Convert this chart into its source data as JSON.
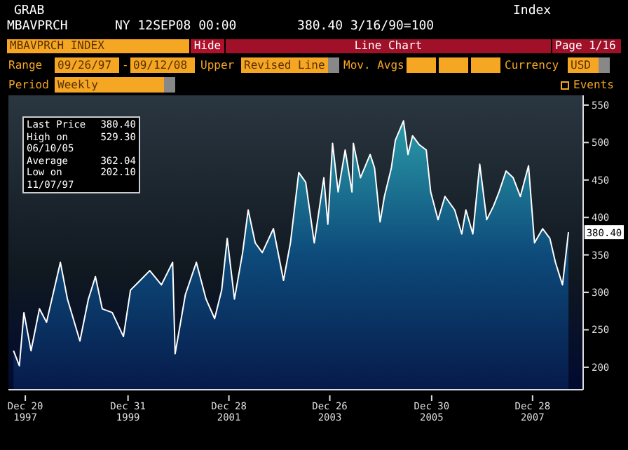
{
  "chart_data": {
    "type": "area",
    "title": "MBAVPRCH",
    "subtitle": "NY 12SEP08 00:00        380.40 3/16/90=100",
    "x": [
      "1997-09-26",
      "1997-11-07",
      "1997-12-10",
      "1998-01-30",
      "1998-04-01",
      "1998-05-22",
      "1998-08-30",
      "1998-10-20",
      "1999-01-18",
      "1999-03-20",
      "1999-05-10",
      "1999-06-28",
      "1999-09-08",
      "1999-11-28",
      "2000-01-18",
      "2000-03-28",
      "2000-06-05",
      "2000-08-28",
      "2000-11-17",
      "2000-12-05",
      "2001-02-17",
      "2001-05-07",
      "2001-07-16",
      "2001-09-16",
      "2001-11-06",
      "2001-12-16",
      "2002-02-06",
      "2002-04-06",
      "2002-05-16",
      "2002-07-06",
      "2002-08-26",
      "2002-11-14",
      "2003-01-26",
      "2003-03-17",
      "2003-05-16",
      "2003-07-05",
      "2003-09-05",
      "2003-11-13",
      "2003-12-12",
      "2004-01-15",
      "2004-02-24",
      "2004-04-15",
      "2004-06-03",
      "2004-06-13",
      "2004-08-03",
      "2004-10-12",
      "2004-11-13",
      "2004-12-23",
      "2005-01-23",
      "2005-03-14",
      "2005-04-12",
      "2005-06-10",
      "2005-07-12",
      "2005-08-14",
      "2005-10-02",
      "2005-11-21",
      "2005-12-23",
      "2006-02-14",
      "2006-04-05",
      "2006-06-14",
      "2006-08-04",
      "2006-09-03",
      "2006-10-23",
      "2006-12-12",
      "2007-01-31",
      "2007-03-21",
      "2007-04-30",
      "2007-06-20",
      "2007-08-10",
      "2007-10-01",
      "2007-11-29",
      "2008-01-11",
      "2008-03-10",
      "2008-05-01",
      "2008-06-10",
      "2008-07-31",
      "2008-09-12"
    ],
    "series": [
      {
        "color": "#ffffff",
        "values": [
          222,
          202,
          273,
          222,
          278,
          260,
          340,
          291,
          235,
          291,
          321,
          278,
          273,
          241,
          303,
          316,
          329,
          310,
          340,
          218,
          297,
          340,
          291,
          265,
          303,
          372,
          291,
          353,
          410,
          366,
          353,
          385,
          316,
          366,
          460,
          447,
          366,
          453,
          391,
          499,
          434,
          490,
          434,
          499,
          453,
          484,
          466,
          394,
          428,
          466,
          503,
          529,
          484,
          509,
          497,
          490,
          434,
          397,
          428,
          410,
          378,
          410,
          378,
          471,
          397,
          415,
          434,
          462,
          453,
          428,
          469,
          366,
          385,
          372,
          340,
          310,
          380.4
        ]
      }
    ],
    "xlim": [
      "1997-08-20",
      "2008-12-27"
    ],
    "xticks": [
      {
        "value": "1997-12-20",
        "label": "Dec 20\n1997"
      },
      {
        "value": "1999-12-31",
        "label": "Dec 31\n1999"
      },
      {
        "value": "2001-12-28",
        "label": "Dec 28\n2001"
      },
      {
        "value": "2003-12-26",
        "label": "Dec 26\n2003"
      },
      {
        "value": "2005-12-30",
        "label": "Dec 30\n2005"
      },
      {
        "value": "2007-12-28",
        "label": "Dec 28\n2007"
      }
    ],
    "ylim": [
      170,
      563
    ],
    "yticks": [
      200,
      250,
      300,
      350,
      400,
      450,
      500,
      550
    ],
    "annotations": [
      "GRAB",
      "Index",
      "MBAVPRCH INDEX",
      "Hide",
      "Line Chart",
      "Page 1/16",
      "Range",
      "09/26/97",
      "-",
      "09/12/08",
      "Upper",
      "Revised Line",
      "Mov. Avgs",
      "Currency",
      "USD",
      "Period",
      "Weekly",
      "Events",
      "Last Price",
      "380.40",
      "High on 06/10/05",
      "529.30",
      "Average",
      "362.04",
      "Low on 11/07/97",
      "202.10",
      {
        "text": "380.40",
        "x": "2008-09-12",
        "y": 380.4
      }
    ]
  }
}
